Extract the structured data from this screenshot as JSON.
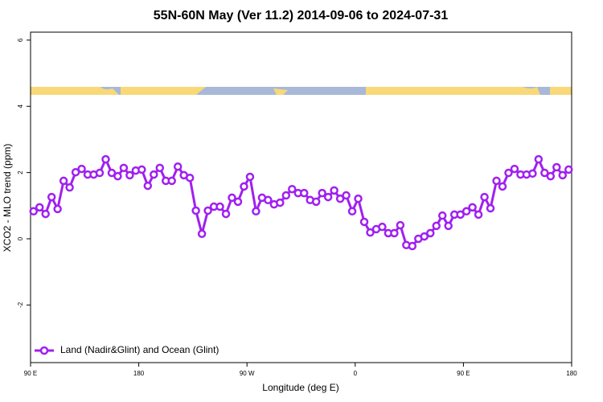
{
  "chart_data": {
    "type": "line",
    "title": "55N-60N May (Ver 11.2)   2014-09-06 to 2024-07-31",
    "x_label": "Longitude (deg E)",
    "y_label": "XCO2 - MLO trend (ppm)",
    "xlim": [
      90,
      540
    ],
    "xticks": [
      {
        "value": 90,
        "label": "90 E"
      },
      180,
      {
        "value": 270,
        "label": "90 W"
      },
      {
        "value": 360,
        "label": "0"
      },
      {
        "value": 450,
        "label": "90 E"
      },
      {
        "value": 540,
        "label": "180"
      }
    ],
    "ylim": [
      -3.74,
      6.24
    ],
    "yticks": [
      -2,
      0,
      2,
      4,
      6
    ],
    "legend": "bottom-left",
    "x": [
      92.5,
      97.5,
      102.5,
      107.5,
      112.5,
      117.5,
      122.5,
      127.5,
      132.5,
      137.5,
      142.5,
      147.5,
      152.5,
      157.5,
      162.5,
      167.5,
      172.5,
      177.5,
      182.5,
      187.5,
      192.5,
      197.5,
      202.5,
      207.5,
      212.5,
      217.5,
      222.5,
      227.5,
      232.5,
      237.5,
      242.5,
      247.5,
      252.5,
      257.5,
      262.5,
      267.5,
      272.5,
      277.5,
      282.5,
      287.5,
      292.5,
      297.5,
      302.5,
      307.5,
      312.5,
      317.5,
      322.5,
      327.5,
      332.5,
      337.5,
      342.5,
      347.5,
      352.5,
      357.5,
      362.5,
      367.5,
      372.5,
      377.5,
      382.5,
      387.5,
      392.5,
      397.5,
      402.5,
      407.5,
      412.5,
      417.5,
      422.5,
      427.5,
      432.5,
      437.5,
      442.5,
      447.5,
      452.5,
      457.5,
      462.5,
      467.5,
      472.5,
      477.5,
      482.5,
      487.5,
      492.5,
      497.5,
      502.5,
      507.5,
      512.5,
      517.5,
      522.5,
      527.5,
      532.5,
      537.5
    ],
    "series": [
      {
        "name": "Land (Nadir&Glint) and Ocean (Glint)",
        "color": "#a020f0",
        "values": [
          0.83,
          0.95,
          0.75,
          1.26,
          0.9,
          1.75,
          1.55,
          2.01,
          2.11,
          1.94,
          1.94,
          1.99,
          2.4,
          1.99,
          1.89,
          2.14,
          1.92,
          2.06,
          2.09,
          1.6,
          1.94,
          2.14,
          1.75,
          1.75,
          2.18,
          1.92,
          1.84,
          0.85,
          0.15,
          0.85,
          0.97,
          0.97,
          0.75,
          1.24,
          1.12,
          1.58,
          1.87,
          0.83,
          1.24,
          1.17,
          1.04,
          1.09,
          1.31,
          1.5,
          1.38,
          1.38,
          1.17,
          1.12,
          1.38,
          1.26,
          1.46,
          1.21,
          1.31,
          0.83,
          1.21,
          0.51,
          0.19,
          0.29,
          0.36,
          0.17,
          0.17,
          0.41,
          -0.19,
          -0.22,
          0.0,
          0.07,
          0.17,
          0.39,
          0.7,
          0.39,
          0.73,
          0.73,
          0.83,
          0.95,
          0.73,
          1.26,
          0.92,
          1.75,
          1.58,
          1.99,
          2.11,
          1.94,
          1.94,
          1.97,
          2.4,
          1.99,
          1.89,
          2.16,
          1.92,
          2.09
        ]
      }
    ]
  }
}
